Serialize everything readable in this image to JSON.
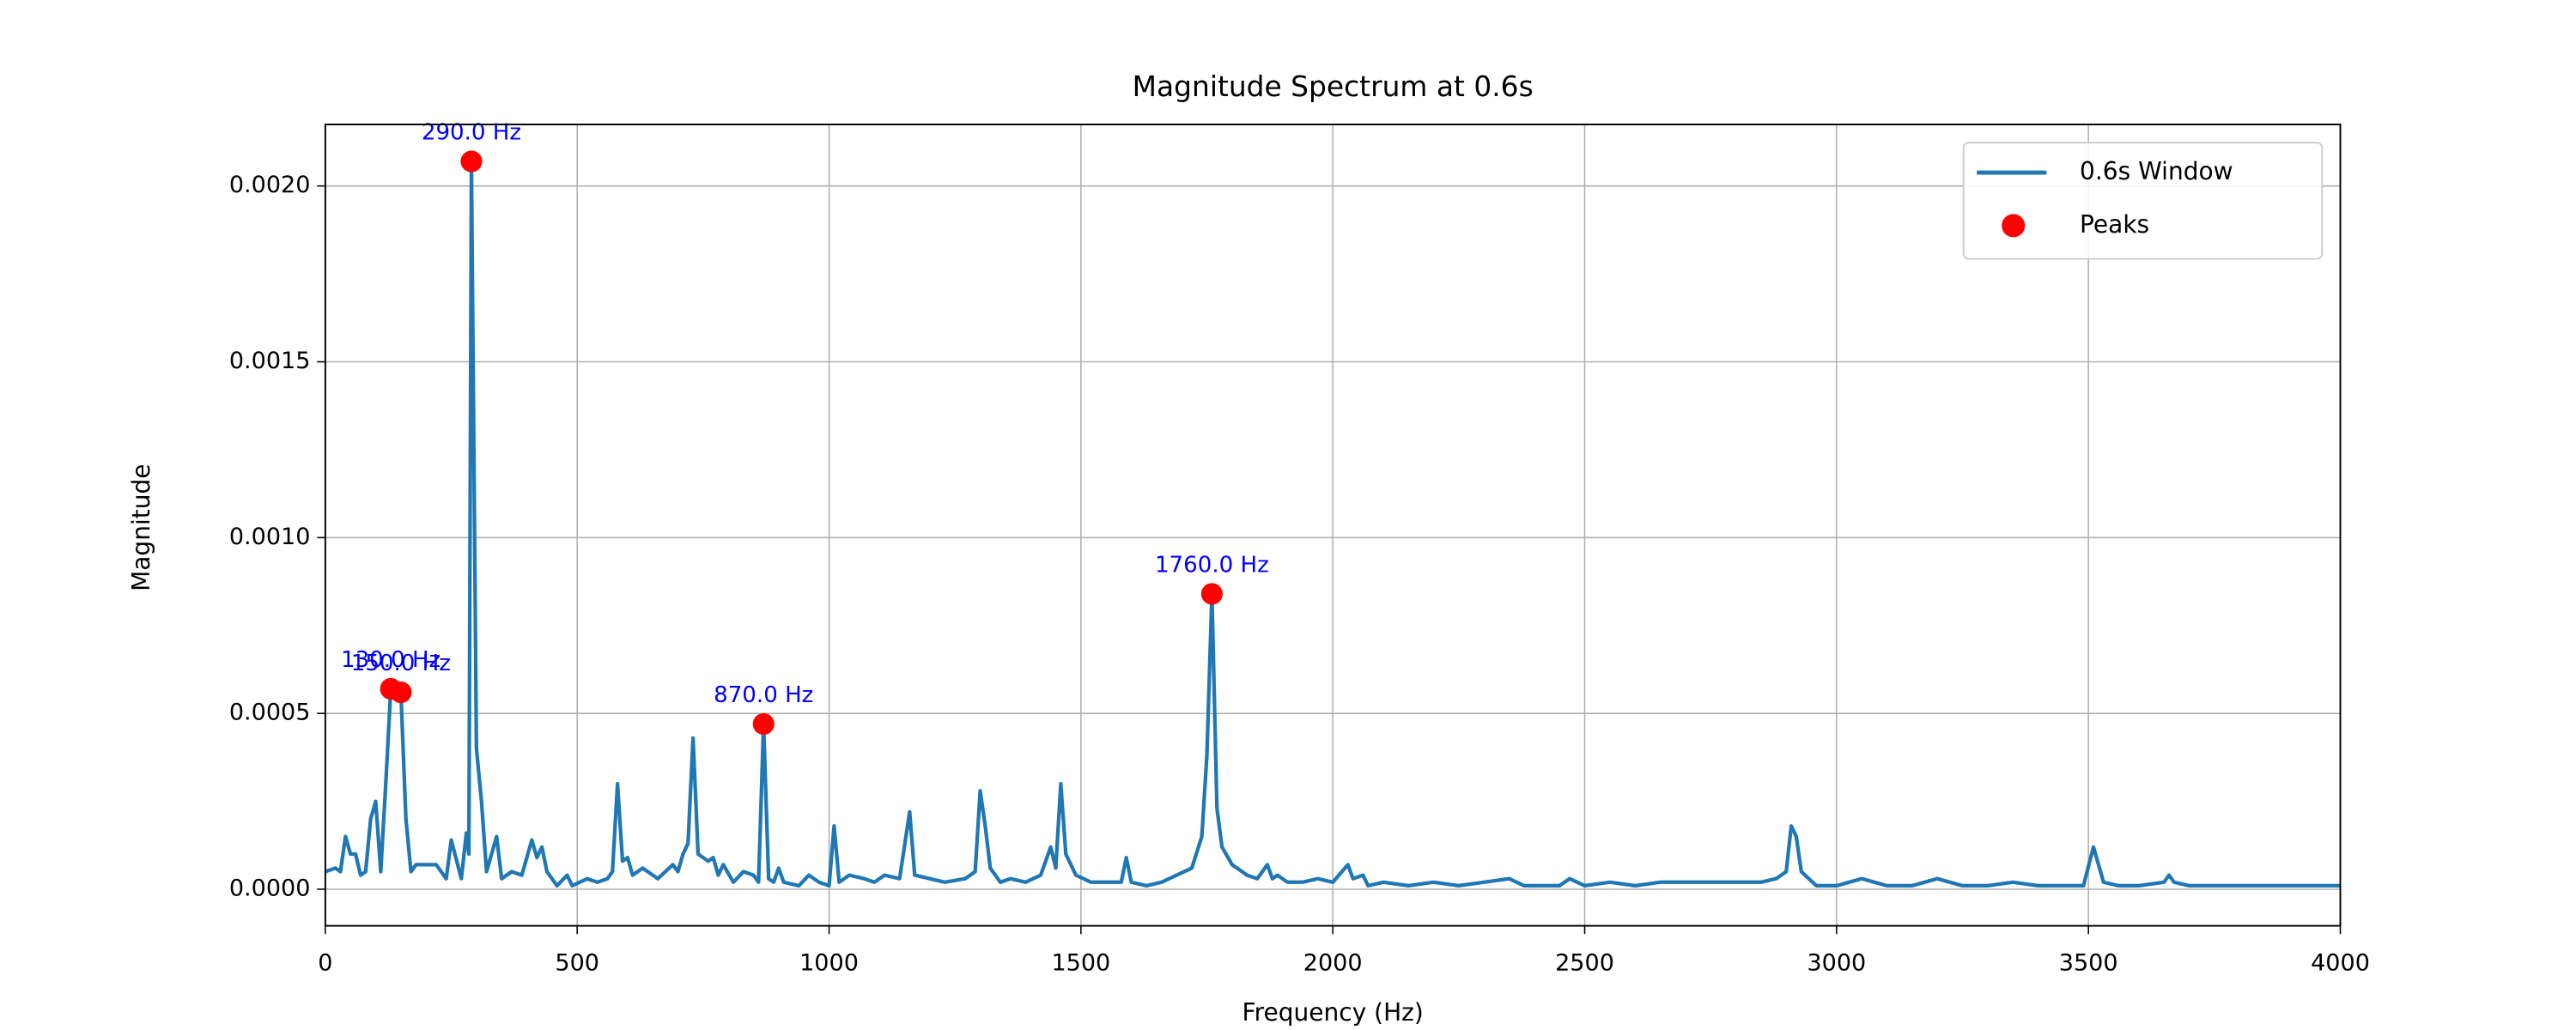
{
  "chart_data": {
    "type": "line",
    "title": "Magnitude Spectrum at 0.6s",
    "xlabel": "Frequency (Hz)",
    "ylabel": "Magnitude",
    "xlim": [
      0,
      4000
    ],
    "ylim": [
      -0.000104,
      0.002175
    ],
    "xticks": [
      0,
      500,
      1000,
      1500,
      2000,
      2500,
      3000,
      3500,
      4000
    ],
    "yticks": [
      {
        "value": 0,
        "label": "0.0000"
      },
      {
        "value": 0.0005,
        "label": "0.0005"
      },
      {
        "value": 0.001,
        "label": "0.0010"
      },
      {
        "value": 0.0015,
        "label": "0.0015"
      },
      {
        "value": 0.002,
        "label": "0.0020"
      }
    ],
    "grid": true,
    "legend": "upper right",
    "series": [
      {
        "name": "0.6s Window",
        "color": "#1f77b4",
        "x": [
          0,
          20,
          30,
          40,
          50,
          60,
          70,
          80,
          90,
          100,
          110,
          120,
          130,
          140,
          150,
          160,
          170,
          180,
          200,
          220,
          240,
          250,
          270,
          280,
          285,
          290,
          300,
          310,
          320,
          340,
          350,
          370,
          390,
          410,
          420,
          430,
          440,
          460,
          480,
          490,
          520,
          540,
          560,
          570,
          580,
          590,
          600,
          610,
          630,
          660,
          690,
          700,
          710,
          720,
          730,
          740,
          760,
          770,
          780,
          790,
          810,
          830,
          850,
          860,
          870,
          880,
          890,
          900,
          910,
          940,
          960,
          980,
          1000,
          1010,
          1020,
          1040,
          1070,
          1090,
          1110,
          1140,
          1160,
          1170,
          1200,
          1230,
          1270,
          1290,
          1300,
          1310,
          1320,
          1340,
          1360,
          1390,
          1420,
          1440,
          1450,
          1460,
          1470,
          1490,
          1520,
          1550,
          1580,
          1590,
          1600,
          1630,
          1660,
          1690,
          1720,
          1740,
          1750,
          1760,
          1770,
          1780,
          1800,
          1830,
          1850,
          1870,
          1880,
          1890,
          1910,
          1940,
          1970,
          2000,
          2030,
          2040,
          2060,
          2070,
          2100,
          2150,
          2200,
          2250,
          2300,
          2350,
          2380,
          2450,
          2470,
          2500,
          2550,
          2600,
          2650,
          2700,
          2750,
          2800,
          2850,
          2880,
          2900,
          2910,
          2920,
          2930,
          2960,
          3000,
          3050,
          3100,
          3150,
          3200,
          3250,
          3300,
          3350,
          3400,
          3450,
          3490,
          3510,
          3520,
          3530,
          3560,
          3600,
          3650,
          3660,
          3670,
          3700,
          3800,
          3900,
          4000
        ],
        "values": [
          5e-05,
          6e-05,
          5e-05,
          0.00015,
          0.0001,
          0.0001,
          4e-05,
          5e-05,
          0.0002,
          0.00025,
          5e-05,
          0.0003,
          0.00057,
          0.00055,
          0.00056,
          0.0002,
          5e-05,
          7e-05,
          7e-05,
          7e-05,
          3e-05,
          0.00014,
          3e-05,
          0.00016,
          0.0001,
          0.00207,
          0.0004,
          0.00025,
          5e-05,
          0.00015,
          3e-05,
          5e-05,
          4e-05,
          0.00014,
          9e-05,
          0.00012,
          5e-05,
          1e-05,
          4e-05,
          1e-05,
          3e-05,
          2e-05,
          3e-05,
          5e-05,
          0.0003,
          8e-05,
          9e-05,
          4e-05,
          6e-05,
          3e-05,
          7e-05,
          5e-05,
          0.0001,
          0.00013,
          0.00043,
          0.0001,
          8e-05,
          9e-05,
          4e-05,
          7e-05,
          2e-05,
          5e-05,
          4e-05,
          2e-05,
          0.00047,
          3e-05,
          2e-05,
          6e-05,
          2e-05,
          1e-05,
          4e-05,
          2e-05,
          1e-05,
          0.00018,
          2e-05,
          4e-05,
          3e-05,
          2e-05,
          4e-05,
          3e-05,
          0.00022,
          4e-05,
          3e-05,
          2e-05,
          3e-05,
          5e-05,
          0.00028,
          0.00018,
          6e-05,
          2e-05,
          3e-05,
          2e-05,
          4e-05,
          0.00012,
          6e-05,
          0.0003,
          0.0001,
          4e-05,
          2e-05,
          2e-05,
          2e-05,
          9e-05,
          2e-05,
          1e-05,
          2e-05,
          4e-05,
          6e-05,
          0.00015,
          0.00038,
          0.00084,
          0.00023,
          0.00012,
          7e-05,
          4e-05,
          3e-05,
          7e-05,
          3e-05,
          4e-05,
          2e-05,
          2e-05,
          3e-05,
          2e-05,
          7e-05,
          3e-05,
          4e-05,
          1e-05,
          2e-05,
          1e-05,
          2e-05,
          1e-05,
          2e-05,
          3e-05,
          1e-05,
          1e-05,
          3e-05,
          1e-05,
          2e-05,
          1e-05,
          2e-05,
          2e-05,
          2e-05,
          2e-05,
          2e-05,
          3e-05,
          5e-05,
          0.00018,
          0.00015,
          5e-05,
          1e-05,
          1e-05,
          3e-05,
          1e-05,
          1e-05,
          3e-05,
          1e-05,
          1e-05,
          2e-05,
          1e-05,
          1e-05,
          1e-05,
          0.00012,
          7e-05,
          2e-05,
          1e-05,
          1e-05,
          2e-05,
          4e-05,
          2e-05,
          1e-05,
          1e-05,
          1e-05,
          1e-05
        ]
      },
      {
        "name": "Peaks",
        "color": "#ff0000",
        "marker": "circle",
        "x": [
          130,
          150,
          290,
          870,
          1760
        ],
        "values": [
          0.00057,
          0.00056,
          0.00207,
          0.00047,
          0.00084
        ],
        "peak_labels": [
          "130.0 Hz",
          "150.0 Hz",
          "290.0 Hz",
          "870.0 Hz",
          "1760.0 Hz"
        ],
        "label_color": "#0000ff"
      }
    ]
  }
}
